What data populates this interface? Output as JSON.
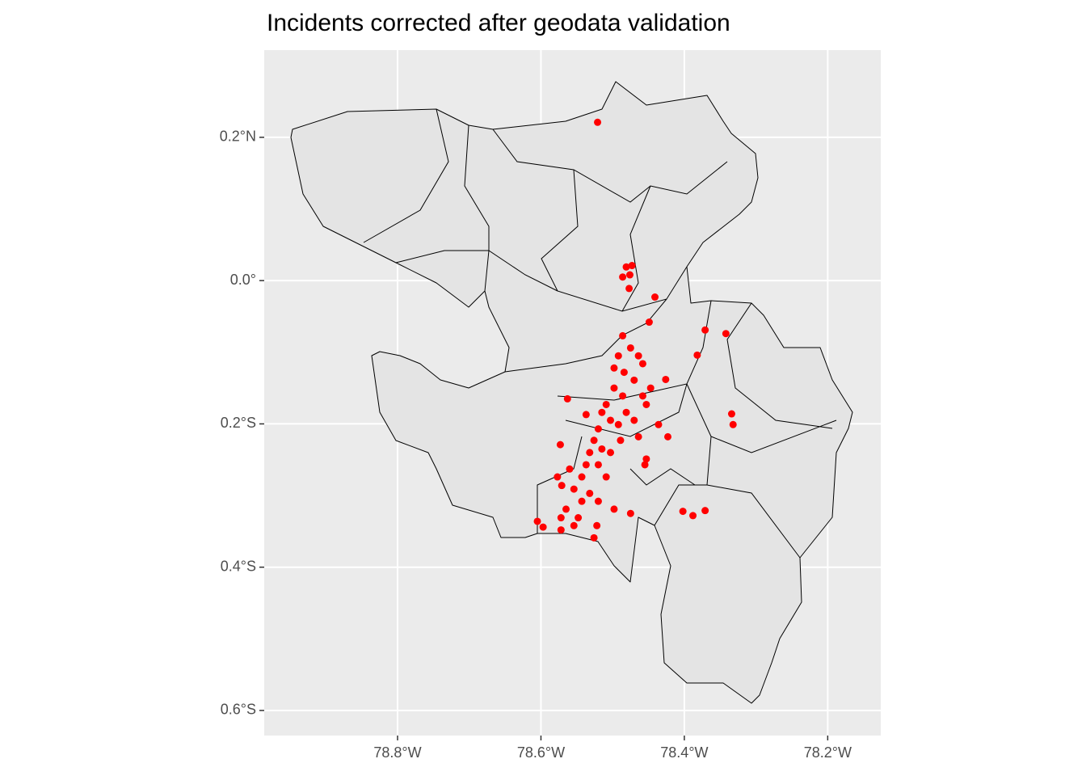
{
  "chart_data": {
    "type": "scatter",
    "title": "Incidents corrected after geodata validation",
    "color": "#ff0000",
    "xlim": [
      -78.986,
      -78.126
    ],
    "ylim": [
      -0.635,
      0.3217
    ],
    "xticks": [
      {
        "value": -78.8,
        "label": "78.8°W"
      },
      {
        "value": -78.6,
        "label": "78.6°W"
      },
      {
        "value": -78.4,
        "label": "78.4°W"
      },
      {
        "value": -78.2,
        "label": "78.2°W"
      }
    ],
    "yticks": [
      {
        "value": 0.2,
        "label": "0.2°N"
      },
      {
        "value": 0,
        "label": "0.0°"
      },
      {
        "value": -0.2,
        "label": "0.2°S"
      },
      {
        "value": -0.4,
        "label": "0.4°S"
      },
      {
        "value": -0.6,
        "label": "0.6°S"
      }
    ],
    "grid": true,
    "x": [
      -78.521,
      -78.481,
      -78.473,
      -78.476,
      -78.486,
      -78.477,
      -78.441,
      -78.449,
      -78.371,
      -78.342,
      -78.382,
      -78.563,
      -78.334,
      -78.332,
      -78.426,
      -78.486,
      -78.492,
      -78.498,
      -78.484,
      -78.475,
      -78.464,
      -78.458,
      -78.47,
      -78.498,
      -78.486,
      -78.458,
      -78.447,
      -78.453,
      -78.509,
      -78.515,
      -78.503,
      -78.492,
      -78.481,
      -78.47,
      -78.464,
      -78.52,
      -78.526,
      -78.515,
      -78.503,
      -78.532,
      -78.537,
      -78.52,
      -78.509,
      -78.543,
      -78.56,
      -78.571,
      -78.554,
      -78.543,
      -78.532,
      -78.565,
      -78.548,
      -78.554,
      -78.52,
      -78.522,
      -78.526,
      -78.498,
      -78.475,
      -78.605,
      -78.597,
      -78.572,
      -78.572,
      -78.537,
      -78.436,
      -78.423,
      -78.455,
      -78.453,
      -78.402,
      -78.388,
      -78.371,
      -78.489,
      -78.577,
      -78.573
    ],
    "values": [
      0.221,
      0.019,
      0.021,
      0.008,
      0.005,
      -0.011,
      -0.023,
      -0.058,
      -0.069,
      -0.074,
      -0.104,
      -0.165,
      -0.186,
      -0.201,
      -0.138,
      -0.077,
      -0.105,
      -0.122,
      -0.128,
      -0.094,
      -0.105,
      -0.116,
      -0.139,
      -0.15,
      -0.161,
      -0.161,
      -0.15,
      -0.173,
      -0.173,
      -0.184,
      -0.195,
      -0.201,
      -0.184,
      -0.195,
      -0.218,
      -0.207,
      -0.223,
      -0.235,
      -0.24,
      -0.24,
      -0.257,
      -0.257,
      -0.274,
      -0.274,
      -0.263,
      -0.286,
      -0.291,
      -0.308,
      -0.297,
      -0.319,
      -0.331,
      -0.342,
      -0.308,
      -0.342,
      -0.359,
      -0.319,
      -0.325,
      -0.336,
      -0.344,
      -0.348,
      -0.331,
      -0.187,
      -0.201,
      -0.218,
      -0.257,
      -0.249,
      -0.322,
      -0.328,
      -0.321,
      -0.223,
      -0.274,
      -0.229
    ]
  }
}
